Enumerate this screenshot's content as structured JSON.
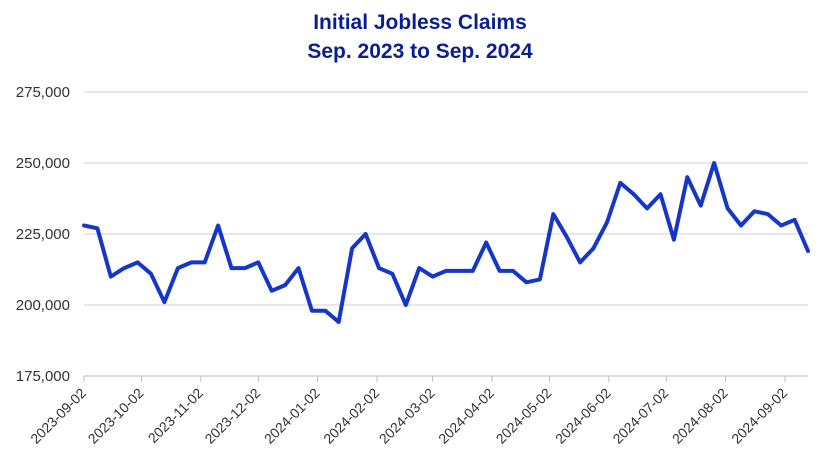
{
  "chart_data": {
    "type": "line",
    "title": "Initial Jobless Claims",
    "subtitle": "Sep. 2023 to Sep. 2024",
    "xlabel": "",
    "ylabel": "",
    "ylim": [
      175000,
      275000
    ],
    "yticks": [
      "175,000",
      "200,000",
      "225,000",
      "250,000",
      "275,000"
    ],
    "ytick_values": [
      175000,
      200000,
      225000,
      250000,
      275000
    ],
    "xticks": [
      "2023-09-02",
      "2023-10-02",
      "2023-11-02",
      "2023-12-02",
      "2024-01-02",
      "2024-02-02",
      "2024-03-02",
      "2024-04-02",
      "2024-05-02",
      "2024-06-02",
      "2024-07-02",
      "2024-08-02",
      "2024-09-02"
    ],
    "grid": true,
    "line_color": "#1636c8",
    "title_color": "#0a1f8f",
    "series": [
      {
        "x": [
          "2023-09-02",
          "2023-09-09",
          "2023-09-16",
          "2023-09-23",
          "2023-09-30",
          "2023-10-07",
          "2023-10-14",
          "2023-10-21",
          "2023-10-28",
          "2023-11-04",
          "2023-11-11",
          "2023-11-18",
          "2023-11-25",
          "2023-12-02",
          "2023-12-09",
          "2023-12-16",
          "2023-12-23",
          "2023-12-30",
          "2024-01-06",
          "2024-01-13",
          "2024-01-20",
          "2024-01-27",
          "2024-02-03",
          "2024-02-10",
          "2024-02-17",
          "2024-02-24",
          "2024-03-02",
          "2024-03-09",
          "2024-03-16",
          "2024-03-23",
          "2024-03-30",
          "2024-04-06",
          "2024-04-13",
          "2024-04-20",
          "2024-04-27",
          "2024-05-04",
          "2024-05-11",
          "2024-05-18",
          "2024-05-25",
          "2024-06-01",
          "2024-06-08",
          "2024-06-15",
          "2024-06-22",
          "2024-06-29",
          "2024-07-06",
          "2024-07-13",
          "2024-07-20",
          "2024-07-27",
          "2024-08-03",
          "2024-08-10",
          "2024-08-17",
          "2024-08-24",
          "2024-08-31",
          "2024-09-07",
          "2024-09-14"
        ],
        "values": [
          228000,
          227000,
          210000,
          213000,
          215000,
          211000,
          201000,
          213000,
          215000,
          215000,
          228000,
          213000,
          213000,
          215000,
          205000,
          207000,
          213000,
          198000,
          198000,
          194000,
          220000,
          225000,
          213000,
          211000,
          200000,
          213000,
          210000,
          212000,
          212000,
          212000,
          222000,
          212000,
          212000,
          208000,
          209000,
          232000,
          224000,
          215000,
          220000,
          229000,
          243000,
          239000,
          234000,
          239000,
          223000,
          245000,
          235000,
          250000,
          234000,
          228000,
          233000,
          232000,
          228000,
          230000,
          219000
        ]
      }
    ]
  }
}
